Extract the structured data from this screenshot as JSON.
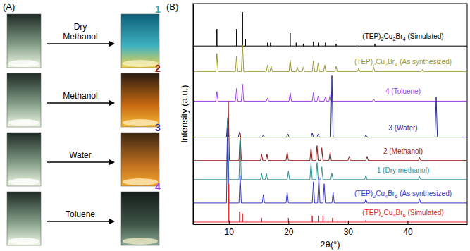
{
  "panel_a": {
    "label": "(A)",
    "rows": [
      {
        "solvent": [
          "Dry",
          "Methanol"
        ],
        "number": "1",
        "color": "#2aa9b8"
      },
      {
        "solvent": [
          "Methanol"
        ],
        "number": "2",
        "color": "#8b1c1c"
      },
      {
        "solvent": [
          "Water"
        ],
        "number": "3",
        "color": "#2a2a9c"
      },
      {
        "solvent": [
          "Toluene"
        ],
        "number": "4",
        "color": "#9b45e8"
      }
    ]
  },
  "chart_data": {
    "type": "line",
    "title": "(B)",
    "x_label": "2θ(°)",
    "y_label": "Intensity (a.u.)",
    "xlim": [
      4,
      50
    ],
    "xticks": [
      10,
      20,
      30,
      40
    ],
    "ylim": [
      0,
      104
    ],
    "yticks": [],
    "tick_labels": "x",
    "grid": false,
    "series": [
      {
        "name": "(TEP)2Cu2Br4 (Simulated)",
        "color": "#000000",
        "x": [
          4,
          8,
          8,
          8,
          11.3,
          11.3,
          11.3,
          12.3,
          12.3,
          12.3,
          12.8,
          12.8,
          12.8,
          16.5,
          16.5,
          16.5,
          17,
          17,
          17,
          20.3,
          20.3,
          20.3,
          21.3,
          21.3,
          21.3,
          22.5,
          22.5,
          22.5,
          24.2,
          24.2,
          24.2,
          25,
          25,
          25,
          26.2,
          26.2,
          26.2,
          28,
          28,
          28,
          31.5,
          31.5,
          31.5,
          34.5,
          34.5,
          34.5,
          50
        ],
        "values": [
          84,
          84,
          92,
          84,
          84,
          92,
          84,
          84,
          100,
          84,
          84,
          87,
          84,
          84,
          85.5,
          84,
          84,
          85.5,
          84,
          84,
          90,
          84,
          84,
          85.5,
          84,
          84,
          85,
          84,
          84,
          86,
          84,
          84,
          85.5,
          84,
          84,
          85.5,
          84,
          84,
          85,
          84,
          84,
          85,
          84,
          84,
          85,
          84,
          84
        ]
      },
      {
        "name": "(TEP)2Cu2Br4 (As synthesized)",
        "color": "#9a9a30",
        "x": [
          4,
          7.8,
          8,
          8.2,
          11.1,
          11.3,
          11.5,
          12.1,
          12.3,
          12.5,
          16.3,
          16.5,
          16.7,
          16.9,
          17.1,
          17.3,
          20.1,
          20.3,
          20.5,
          21.3,
          21.5,
          21.7,
          22.3,
          22.5,
          22.7,
          24,
          24.2,
          24.4,
          24.8,
          25,
          25.2,
          25.9,
          26.1,
          26.3,
          27.8,
          28,
          28.2,
          31.6,
          31.8,
          32,
          34.1,
          34.3,
          34.5,
          42.3,
          42.5,
          42.7,
          50
        ],
        "values": [
          72,
          72,
          80.5,
          72,
          72,
          79,
          72,
          72,
          84.5,
          72,
          72,
          75,
          72,
          72,
          74.5,
          72,
          72,
          77.5,
          72,
          72,
          74,
          72,
          72,
          74,
          72,
          72,
          77,
          72,
          72,
          76,
          72,
          72,
          75,
          72,
          72,
          74.5,
          72,
          72,
          73.5,
          72,
          72,
          74,
          72,
          72,
          73,
          72,
          72
        ]
      },
      {
        "name": "4 (Toluene)",
        "color": "#9b45e8",
        "x": [
          4,
          7.8,
          8,
          8.2,
          11.1,
          11.3,
          11.5,
          12.1,
          12.3,
          12.5,
          16.3,
          16.5,
          16.7,
          20.1,
          20.3,
          20.5,
          24,
          24.2,
          24.4,
          24.8,
          25,
          25.2,
          26,
          26.2,
          26.4,
          26.8,
          27,
          27.2,
          34.1,
          34.3,
          34.5,
          50
        ],
        "values": [
          58,
          58,
          62.5,
          58,
          58,
          64,
          58,
          58,
          66,
          58,
          58,
          59.5,
          58,
          58,
          62,
          58,
          58,
          62,
          58,
          58,
          60.5,
          58,
          58,
          60,
          58,
          58,
          61,
          58,
          58,
          59,
          58,
          58
        ]
      },
      {
        "name": "3 (Water)",
        "color": "#2a2a9c",
        "x": [
          4,
          9.6,
          9.8,
          10,
          11.6,
          11.8,
          12,
          15.6,
          15.8,
          16,
          19.7,
          19.9,
          20.1,
          23.8,
          24,
          24.2,
          24.8,
          25,
          25.2,
          27.1,
          27.3,
          27.5,
          32.8,
          33,
          33.2,
          44.6,
          44.8,
          45,
          50
        ],
        "values": [
          41,
          41,
          49,
          41,
          41,
          43.5,
          41,
          41,
          42,
          41,
          41,
          42.5,
          41,
          41,
          43,
          41,
          41,
          42.5,
          41,
          41,
          70,
          41,
          41,
          42,
          41,
          41,
          60,
          41,
          41
        ]
      },
      {
        "name": "2 (Methanol)",
        "color": "#8b1c1c",
        "x": [
          4,
          9.7,
          9.9,
          10.1,
          11.7,
          11.9,
          12.1,
          15.3,
          15.5,
          15.7,
          16.2,
          16.4,
          16.6,
          19.6,
          19.8,
          20,
          23.6,
          23.8,
          24,
          24.6,
          24.8,
          25,
          25.4,
          25.6,
          25.8,
          26.8,
          27,
          27.2,
          30,
          30.2,
          30.4,
          33,
          33.2,
          33.4,
          41.8,
          42,
          42.2,
          50
        ],
        "values": [
          30,
          30,
          58,
          30,
          30,
          43,
          30,
          30,
          33,
          30,
          30,
          33,
          30,
          30,
          34,
          30,
          30,
          36,
          30,
          30,
          37,
          30,
          30,
          36,
          30,
          30,
          34,
          30,
          30,
          32,
          30,
          30,
          32,
          30,
          30,
          31.5,
          30,
          30
        ]
      },
      {
        "name": "1 (Dry methanol)",
        "color": "#2f8f8f",
        "x": [
          4,
          9.6,
          9.8,
          10,
          11.7,
          11.9,
          12.1,
          15.3,
          15.5,
          15.7,
          16.1,
          16.3,
          16.5,
          19.8,
          20,
          20.2,
          23.6,
          23.8,
          24,
          24.6,
          24.8,
          25,
          25.4,
          25.6,
          25.8,
          27.1,
          27.3,
          27.5,
          32.8,
          33,
          33.2,
          41.8,
          42,
          42.2,
          50
        ],
        "values": [
          21,
          21,
          50,
          21,
          21,
          40,
          21,
          21,
          24,
          21,
          21,
          24,
          21,
          21,
          25,
          21,
          21,
          29,
          21,
          21,
          29,
          21,
          21,
          27,
          21,
          21,
          24,
          21,
          21,
          23,
          21,
          21,
          22.5,
          21,
          21
        ]
      },
      {
        "name": "(TEP)2Cu4Br6 (As synthesized)",
        "color": "#3535d5",
        "x": [
          4,
          9.6,
          9.8,
          10,
          11.7,
          11.9,
          12.1,
          15.6,
          15.8,
          16,
          19.6,
          19.8,
          20,
          24,
          24.2,
          24.4,
          24.9,
          25.1,
          25.3,
          25.8,
          26,
          26.2,
          27.3,
          27.5,
          27.7,
          32.8,
          33,
          33.2,
          41.8,
          42,
          42.2,
          50
        ],
        "values": [
          10,
          10,
          45,
          10,
          10,
          23,
          10,
          10,
          14,
          10,
          10,
          15,
          10,
          10,
          20,
          10,
          10,
          22,
          10,
          10,
          19,
          10,
          10,
          15,
          10,
          10,
          12,
          10,
          10,
          12,
          10,
          10
        ]
      },
      {
        "name": "(TEP)2Cu4Br6 (Simulated)",
        "color": "#e3262b",
        "x": [
          4,
          10,
          10,
          10,
          11.8,
          11.8,
          11.8,
          12.3,
          12.3,
          12.3,
          15.5,
          15.5,
          15.5,
          20,
          20,
          20,
          24,
          24,
          24,
          25,
          25,
          25,
          25.8,
          25.8,
          25.8,
          27.4,
          27.4,
          27.4,
          33,
          33,
          33,
          50
        ],
        "values": [
          1,
          1,
          19,
          1,
          1,
          6,
          1,
          1,
          5,
          1,
          1,
          3,
          1,
          1,
          3,
          1,
          1,
          4,
          1,
          1,
          4,
          1,
          1,
          4,
          1,
          1,
          3,
          1,
          1,
          2,
          1,
          1
        ]
      }
    ]
  }
}
